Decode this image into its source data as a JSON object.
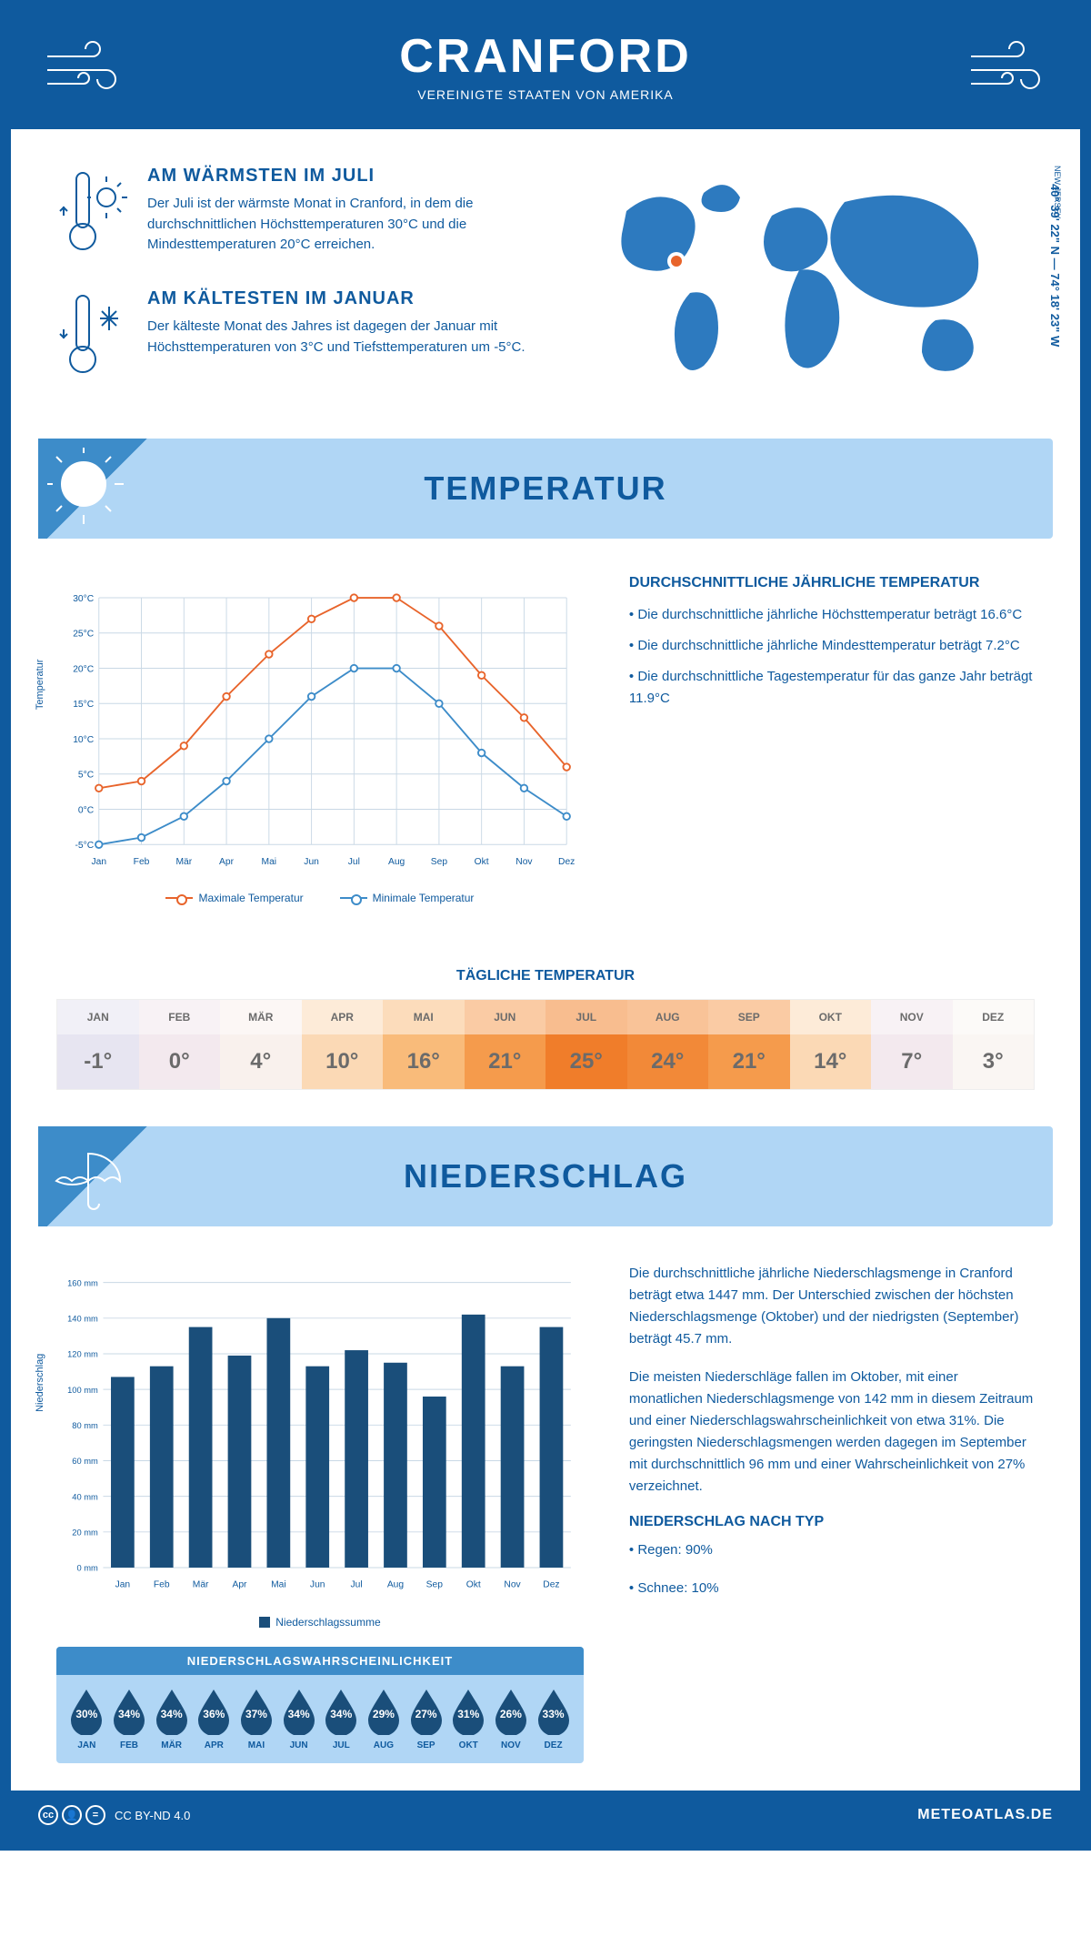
{
  "header": {
    "title": "CRANFORD",
    "subtitle": "VEREINIGTE STAATEN VON AMERIKA"
  },
  "location": {
    "coords": "40° 39' 22\" N — 74° 18' 23\" W",
    "region": "NEW JERSEY",
    "marker_color": "#e8642b"
  },
  "warm": {
    "title": "AM WÄRMSTEN IM JULI",
    "text": "Der Juli ist der wärmste Monat in Cranford, in dem die durchschnittlichen Höchsttemperaturen 30°C und die Mindesttemperaturen 20°C erreichen."
  },
  "cold": {
    "title": "AM KÄLTESTEN IM JANUAR",
    "text": "Der kälteste Monat des Jahres ist dagegen der Januar mit Höchsttemperaturen von 3°C und Tiefsttemperaturen um -5°C."
  },
  "temp_section": {
    "banner": "TEMPERATUR",
    "notes_title": "DURCHSCHNITTLICHE JÄHRLICHE TEMPERATUR",
    "note1": "• Die durchschnittliche jährliche Höchsttemperatur beträgt 16.6°C",
    "note2": "• Die durchschnittliche jährliche Mindesttemperatur beträgt 7.2°C",
    "note3": "• Die durchschnittliche Tagestemperatur für das ganze Jahr beträgt 11.9°C",
    "legend_max": "Maximale Temperatur",
    "legend_min": "Minimale Temperatur",
    "axis_y": "Temperatur",
    "daily_title": "TÄGLICHE TEMPERATUR"
  },
  "temp_chart": {
    "type": "line",
    "months": [
      "Jan",
      "Feb",
      "Mär",
      "Apr",
      "Mai",
      "Jun",
      "Jul",
      "Aug",
      "Sep",
      "Okt",
      "Nov",
      "Dez"
    ],
    "max_values": [
      3,
      4,
      9,
      16,
      22,
      27,
      30,
      30,
      26,
      19,
      13,
      6
    ],
    "min_values": [
      -5,
      -4,
      -1,
      4,
      10,
      16,
      20,
      20,
      15,
      8,
      3,
      -1
    ],
    "max_color": "#e8642b",
    "min_color": "#3d8cc9",
    "ylim": [
      -5,
      30
    ],
    "ytick_step": 5,
    "ytick_labels": [
      "-5°C",
      "0°C",
      "5°C",
      "10°C",
      "15°C",
      "20°C",
      "25°C",
      "30°C"
    ],
    "grid_color": "#c9d8e5",
    "marker_fill": "#ffffff",
    "line_width": 2
  },
  "daily_temp": {
    "months": [
      "JAN",
      "FEB",
      "MÄR",
      "APR",
      "MAI",
      "JUN",
      "JUL",
      "AUG",
      "SEP",
      "OKT",
      "NOV",
      "DEZ"
    ],
    "values": [
      "-1°",
      "0°",
      "4°",
      "10°",
      "16°",
      "21°",
      "25°",
      "24°",
      "21°",
      "14°",
      "7°",
      "3°"
    ],
    "bg_colors": [
      "#e7e5f1",
      "#f3e9ee",
      "#f9f1ed",
      "#fbd9b5",
      "#f9bb7a",
      "#f59b4c",
      "#f07d2a",
      "#f28938",
      "#f59b4c",
      "#fbd9b5",
      "#f3e9ee",
      "#faf6f3"
    ],
    "header_bg_colors": [
      "#f1f0f7",
      "#f8f2f5",
      "#fcf7f5",
      "#fdebd8",
      "#fcdcbb",
      "#facba4",
      "#f8bd8f",
      "#f9c398",
      "#facba4",
      "#fdebd8",
      "#f8f2f5",
      "#fcfaf8"
    ],
    "text_color": "#6b6b6b"
  },
  "precip_section": {
    "banner": "NIEDERSCHLAG",
    "axis_y": "Niederschlag",
    "legend": "Niederschlagssumme",
    "text1": "Die durchschnittliche jährliche Niederschlagsmenge in Cranford beträgt etwa 1447 mm. Der Unterschied zwischen der höchsten Niederschlagsmenge (Oktober) und der niedrigsten (September) beträgt 45.7 mm.",
    "text2": "Die meisten Niederschläge fallen im Oktober, mit einer monatlichen Niederschlagsmenge von 142 mm in diesem Zeitraum und einer Niederschlagswahrscheinlichkeit von etwa 31%. Die geringsten Niederschlagsmengen werden dagegen im September mit durchschnittlich 96 mm und einer Wahrscheinlichkeit von 27% verzeichnet.",
    "type_title": "NIEDERSCHLAG NACH TYP",
    "type1": "• Regen: 90%",
    "type2": "• Schnee: 10%"
  },
  "precip_chart": {
    "type": "bar",
    "months": [
      "Jan",
      "Feb",
      "Mär",
      "Apr",
      "Mai",
      "Jun",
      "Jul",
      "Aug",
      "Sep",
      "Okt",
      "Nov",
      "Dez"
    ],
    "values": [
      107,
      113,
      135,
      119,
      140,
      113,
      122,
      115,
      96,
      142,
      113,
      135
    ],
    "bar_color": "#1a4e7a",
    "ylim": [
      0,
      160
    ],
    "ytick_step": 20,
    "ytick_labels": [
      "0 mm",
      "20 mm",
      "40 mm",
      "60 mm",
      "80 mm",
      "100 mm",
      "120 mm",
      "140 mm",
      "160 mm"
    ],
    "grid_color": "#c9d8e5",
    "bar_width": 0.6
  },
  "prob": {
    "title": "NIEDERSCHLAGSWAHRSCHEINLICHKEIT",
    "months": [
      "JAN",
      "FEB",
      "MÄR",
      "APR",
      "MAI",
      "JUN",
      "JUL",
      "AUG",
      "SEP",
      "OKT",
      "NOV",
      "DEZ"
    ],
    "values": [
      "30%",
      "34%",
      "34%",
      "36%",
      "37%",
      "34%",
      "34%",
      "29%",
      "27%",
      "31%",
      "26%",
      "33%"
    ],
    "drop_color": "#1a4e7a"
  },
  "footer": {
    "license": "CC BY-ND 4.0",
    "site": "METEOATLAS.DE"
  },
  "colors": {
    "primary": "#0f5a9e",
    "light_blue": "#b0d6f5",
    "mid_blue": "#3d8cc9",
    "map_fill": "#2d7abf"
  }
}
